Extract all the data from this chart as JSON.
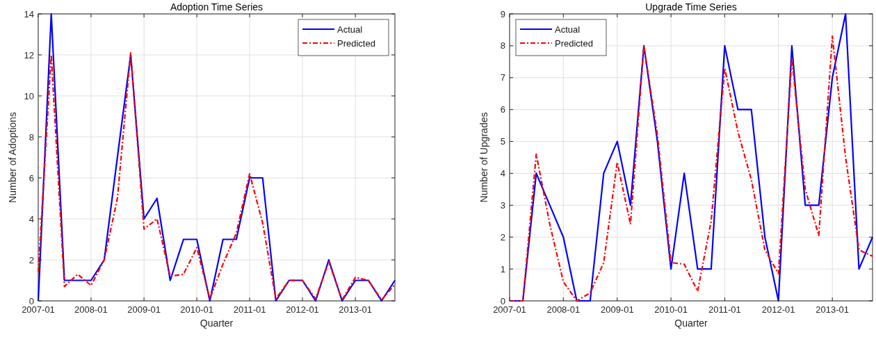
{
  "chart_data": [
    {
      "type": "line",
      "title": "Adoption Time Series",
      "xlabel": "Quarter",
      "ylabel": "Number of Adoptions",
      "x": [
        "2007-01",
        "2007-04",
        "2007-07",
        "2007-10",
        "2008-01",
        "2008-04",
        "2008-07",
        "2008-10",
        "2009-01",
        "2009-04",
        "2009-07",
        "2009-10",
        "2010-01",
        "2010-04",
        "2010-07",
        "2010-10",
        "2011-01",
        "2011-04",
        "2011-07",
        "2011-10",
        "2012-01",
        "2012-04",
        "2012-07",
        "2012-10",
        "2013-01",
        "2013-04",
        "2013-07",
        "2013-10"
      ],
      "series": [
        {
          "name": "Actual",
          "color": "#0000ff",
          "line_style": "solid",
          "values": [
            0,
            14,
            1,
            1,
            1,
            2,
            7,
            12,
            4,
            5,
            1,
            3,
            3,
            0,
            3,
            3,
            6,
            6,
            0,
            1,
            1,
            0,
            2,
            0,
            1,
            1,
            0,
            1
          ]
        },
        {
          "name": "Predicted",
          "color": "#ff0000",
          "line_style": "dashed",
          "values": [
            1.4,
            12,
            0.7,
            1.3,
            0.75,
            2,
            5,
            12.1,
            3.5,
            4,
            1.2,
            1.3,
            2.6,
            0.1,
            1.8,
            3.3,
            6.2,
            3.8,
            0.1,
            1,
            1,
            0.1,
            1.9,
            0.05,
            1.15,
            1,
            0.05,
            0.8
          ]
        }
      ],
      "xlim": [
        "2007-01",
        "2013-10"
      ],
      "xticks": [
        "2007-01",
        "2008-01",
        "2009-01",
        "2010-01",
        "2011-01",
        "2012-01",
        "2013-01"
      ],
      "ylim": [
        0,
        14
      ],
      "yticks": [
        0,
        2,
        4,
        6,
        8,
        10,
        12,
        14
      ],
      "grid": true,
      "legend": "top right"
    },
    {
      "type": "line",
      "title": "Upgrade Time Series",
      "xlabel": "Quarter",
      "ylabel": "Number of Upgrades",
      "x": [
        "2007-01",
        "2007-04",
        "2007-07",
        "2007-10",
        "2008-01",
        "2008-04",
        "2008-07",
        "2008-10",
        "2009-01",
        "2009-04",
        "2009-07",
        "2009-10",
        "2010-01",
        "2010-04",
        "2010-07",
        "2010-10",
        "2011-01",
        "2011-04",
        "2011-07",
        "2011-10",
        "2012-01",
        "2012-04",
        "2012-07",
        "2012-10",
        "2013-01",
        "2013-04",
        "2013-07",
        "2013-10"
      ],
      "series": [
        {
          "name": "Actual",
          "color": "#0000ff",
          "line_style": "solid",
          "values": [
            0,
            0,
            4,
            3,
            2,
            0,
            0,
            4,
            5,
            3,
            8,
            5,
            1,
            4,
            1,
            1,
            8,
            6,
            6,
            2,
            0,
            8,
            3,
            3,
            7,
            9,
            1,
            2
          ]
        },
        {
          "name": "Predicted",
          "color": "#ff0000",
          "line_style": "dashed",
          "values": [
            0,
            0,
            4.6,
            2.4,
            0.6,
            0,
            0.25,
            1.2,
            4.35,
            2.4,
            8,
            5.2,
            1.2,
            1.15,
            0.3,
            2.5,
            7.3,
            5.3,
            3.8,
            1.6,
            0.85,
            7.6,
            3.5,
            2.05,
            8.3,
            4.5,
            1.6,
            1.4
          ]
        }
      ],
      "xlim": [
        "2007-01",
        "2013-10"
      ],
      "xticks": [
        "2007-01",
        "2008-01",
        "2009-01",
        "2010-01",
        "2011-01",
        "2012-01",
        "2013-01"
      ],
      "ylim": [
        0,
        9
      ],
      "yticks": [
        0,
        1,
        2,
        3,
        4,
        5,
        6,
        7,
        8,
        9
      ],
      "grid": true,
      "legend": "top left"
    }
  ]
}
